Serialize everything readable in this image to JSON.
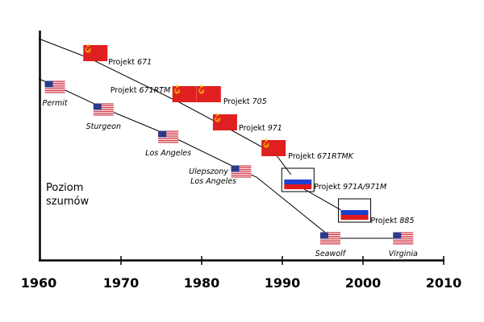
{
  "chart_data": {
    "type": "line",
    "ylabel": "Poziom szumów",
    "xlim": [
      1960,
      2010
    ],
    "xticks": [
      "1960",
      "1970",
      "1980",
      "1990",
      "2000",
      "2010"
    ],
    "grid": false,
    "series": [
      {
        "country": "USSR / Russia",
        "points": [
          {
            "x": 1967,
            "label_prefix": "Projekt",
            "label_suffix": "671",
            "flag": "ussr"
          },
          {
            "x": 1978,
            "label_prefix": "Projekt",
            "label_suffix": "671RTM",
            "flag": "ussr"
          },
          {
            "x": 1981,
            "label_prefix": "Projekt",
            "label_suffix": "705",
            "flag": "ussr"
          },
          {
            "x": 1983,
            "label_prefix": "Projekt",
            "label_suffix": "971",
            "flag": "ussr"
          },
          {
            "x": 1989,
            "label_prefix": "Projekt",
            "label_suffix": "671RTMK",
            "flag": "ussr"
          },
          {
            "x": 1992,
            "label_prefix": "Projekt",
            "label_suffix": "971A/971M",
            "flag": "russia"
          },
          {
            "x": 1999,
            "label_prefix": "Projekt",
            "label_suffix": "885",
            "flag": "russia"
          }
        ]
      },
      {
        "country": "USA",
        "points": [
          {
            "x": 1962,
            "label": "Permit",
            "flag": "usa"
          },
          {
            "x": 1968,
            "label": "Sturgeon",
            "flag": "usa"
          },
          {
            "x": 1976,
            "label": "Los Angeles",
            "flag": "usa"
          },
          {
            "x": 1985,
            "label": "Ulepszony Los Angeles",
            "flag": "usa"
          },
          {
            "x": 1996,
            "label": "Seawolf",
            "flag": "usa"
          },
          {
            "x": 2005,
            "label": "Virginia",
            "flag": "usa"
          }
        ]
      }
    ]
  },
  "colors": {
    "ussr_red": "#e02020",
    "ussr_emblem": "#f0c800",
    "us_red": "#cc2233",
    "us_blue": "#2a3a8a",
    "ru_blue": "#1f3fcf",
    "ru_red": "#e01818"
  }
}
